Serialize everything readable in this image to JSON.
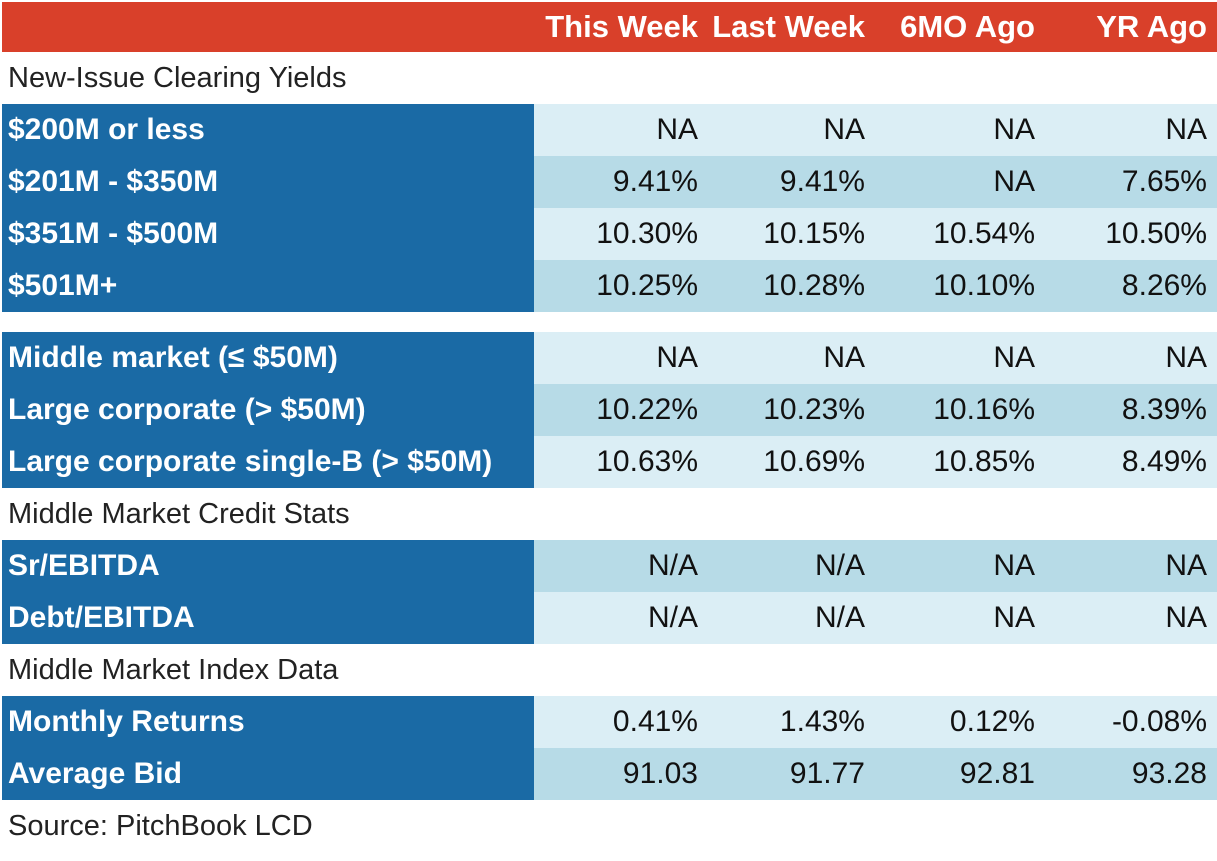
{
  "header": {
    "columns": [
      "This Week",
      "Last Week",
      "6MO Ago",
      "YR Ago"
    ]
  },
  "sections": {
    "clearing": "New-Issue Clearing Yields",
    "credit": "Middle Market Credit Stats",
    "index": "Middle Market Index Data"
  },
  "rows": [
    {
      "label": "$200M or less",
      "values": [
        "NA",
        "NA",
        "NA",
        "NA"
      ]
    },
    {
      "label": "$201M - $350M",
      "values": [
        "9.41%",
        "9.41%",
        "NA",
        "7.65%"
      ]
    },
    {
      "label": "$351M - $500M",
      "values": [
        "10.30%",
        "10.15%",
        "10.54%",
        "10.50%"
      ]
    },
    {
      "label": "$501M+",
      "values": [
        "10.25%",
        "10.28%",
        "10.10%",
        "8.26%"
      ]
    },
    {
      "label": "Middle market (≤ $50M)",
      "values": [
        "NA",
        "NA",
        "NA",
        "NA"
      ]
    },
    {
      "label": "Large corporate (> $50M)",
      "values": [
        "10.22%",
        "10.23%",
        "10.16%",
        "8.39%"
      ]
    },
    {
      "label": "Large corporate single-B (> $50M)",
      "values": [
        "10.63%",
        "10.69%",
        "10.85%",
        "8.49%"
      ]
    },
    {
      "label": "Sr/EBITDA",
      "values": [
        "N/A",
        "N/A",
        "NA",
        "NA"
      ]
    },
    {
      "label": "Debt/EBITDA",
      "values": [
        "N/A",
        "N/A",
        "NA",
        "NA"
      ]
    },
    {
      "label": "Monthly Returns",
      "values": [
        "0.41%",
        "1.43%",
        "0.12%",
        "-0.08%"
      ]
    },
    {
      "label": "Average Bid",
      "values": [
        "91.03",
        "91.77",
        "92.81",
        "93.28"
      ]
    }
  ],
  "source": "Source: PitchBook LCD",
  "colors": {
    "header": "#d9402a",
    "label_bg": "#1a6aa5",
    "row_light": "#dbeef5",
    "row_dark": "#b7dbe7"
  }
}
